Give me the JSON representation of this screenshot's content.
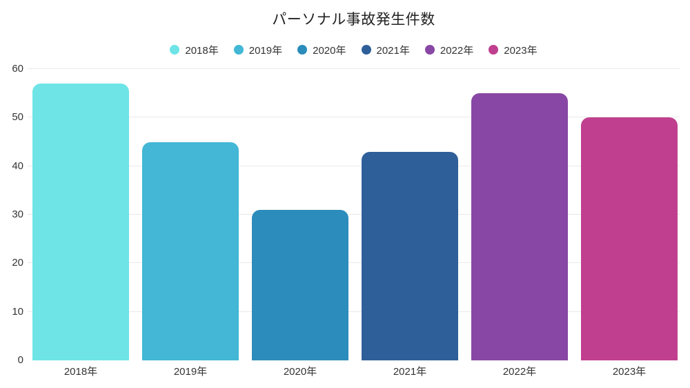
{
  "colors": {
    "background": "#ffffff",
    "text": "#333333",
    "title_text": "#222222",
    "gridline": "#e9e9e9"
  },
  "chart_data": {
    "type": "bar",
    "title": "パーソナル事故発生件数",
    "categories": [
      "2018年",
      "2019年",
      "2020年",
      "2021年",
      "2022年",
      "2023年"
    ],
    "values": [
      57,
      45,
      31,
      43,
      55,
      50
    ],
    "bar_colors": [
      "#6EE4E7",
      "#43B7D5",
      "#2C8CBB",
      "#2F5F99",
      "#8847A5",
      "#C03F8E"
    ],
    "legend": [
      "2018年",
      "2019年",
      "2020年",
      "2021年",
      "2022年",
      "2023年"
    ],
    "legend_position": "top",
    "xlabel": "",
    "ylabel": "",
    "ylim": [
      0,
      60
    ],
    "yticks": [
      0,
      10,
      20,
      30,
      40,
      50,
      60
    ],
    "grid": true
  }
}
